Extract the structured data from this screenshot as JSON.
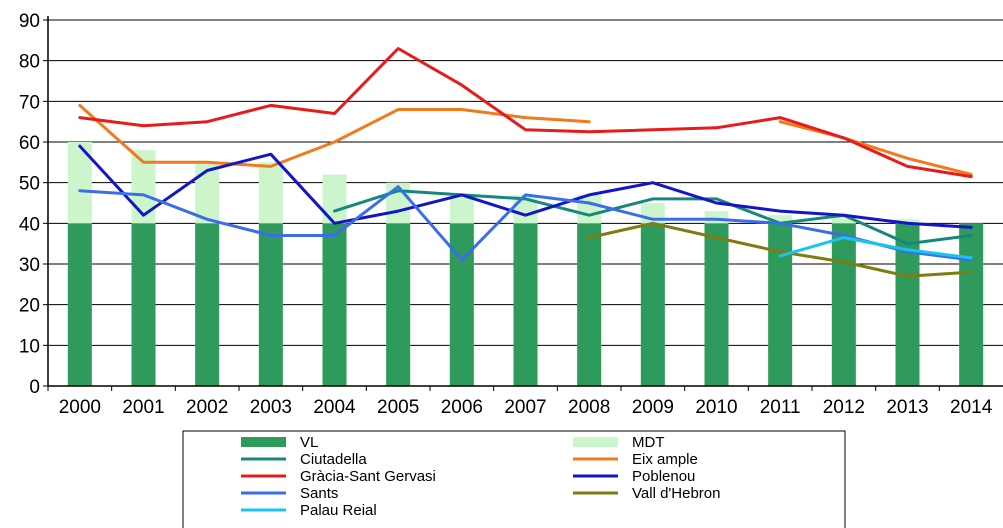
{
  "chart_data": {
    "type": "bar",
    "title": "",
    "xlabel": "",
    "ylabel": "",
    "ylim": [
      0,
      90
    ],
    "y_ticks": [
      0,
      10,
      20,
      30,
      40,
      50,
      60,
      70,
      80,
      90
    ],
    "grid": "horizontal",
    "legend_position": "bottom",
    "categories": [
      "2000",
      "2001",
      "2002",
      "2003",
      "2004",
      "2005",
      "2006",
      "2007",
      "2008",
      "2009",
      "2010",
      "2011",
      "2012",
      "2013",
      "2014"
    ],
    "bars": [
      {
        "name": "VL",
        "color": "#2e9a5c",
        "values": [
          40,
          40,
          40,
          40,
          40,
          40,
          40,
          40,
          40,
          40,
          40,
          40,
          40,
          40,
          40
        ]
      },
      {
        "name": "MDT",
        "color": "#ccf5cc",
        "values": [
          60,
          58,
          55,
          55,
          52,
          50,
          47,
          47,
          47,
          45,
          43,
          42,
          42,
          41,
          40
        ]
      }
    ],
    "series": [
      {
        "name": "Ciutadella",
        "color": "#17877e",
        "values": [
          null,
          null,
          null,
          null,
          43,
          48,
          47,
          46,
          42,
          46,
          46,
          40,
          42,
          35,
          37
        ]
      },
      {
        "name": "Eixample",
        "color": "#f07b1d",
        "values": [
          69,
          55,
          55,
          54,
          60,
          68,
          68,
          66,
          65,
          null,
          null,
          65,
          61,
          56,
          52
        ]
      },
      {
        "name": "Gràcia-Sant Gervasi",
        "color": "#e81b1b",
        "values": [
          66,
          64,
          65,
          69,
          67,
          83,
          74,
          63,
          62.5,
          63,
          63.5,
          66,
          61,
          54,
          51.5
        ]
      },
      {
        "name": "Poblenou",
        "color": "#1515c8",
        "values": [
          59,
          42,
          53,
          57,
          40,
          43,
          47,
          42,
          47,
          50,
          45,
          43,
          42,
          40,
          39
        ]
      },
      {
        "name": "Sants",
        "color": "#3a6ee8",
        "values": [
          48,
          47,
          41,
          37,
          37,
          49,
          31,
          47,
          45,
          41,
          41,
          40,
          37,
          33,
          31
        ]
      },
      {
        "name": "Vall d'Hebron",
        "color": "#7d7d13",
        "values": [
          null,
          null,
          null,
          null,
          null,
          null,
          null,
          null,
          36.5,
          40,
          36.5,
          33,
          30.5,
          27,
          28
        ]
      },
      {
        "name": "Palau Reial",
        "color": "#19c4ec",
        "values": [
          null,
          null,
          null,
          null,
          null,
          null,
          null,
          null,
          null,
          null,
          null,
          32,
          36.5,
          33.5,
          31.5
        ]
      }
    ],
    "legend": [
      {
        "label": "VL",
        "color": "#2e9a5c",
        "kind": "bar"
      },
      {
        "label": "MDT",
        "color": "#ccf5cc",
        "kind": "bar"
      },
      {
        "label": "Ciutadella",
        "color": "#17877e",
        "kind": "line"
      },
      {
        "label": "Eix ample",
        "color": "#f07b1d",
        "kind": "line"
      },
      {
        "label": "Gràcia-Sant Gervasi",
        "color": "#e81b1b",
        "kind": "line"
      },
      {
        "label": "Poblenou",
        "color": "#1515c8",
        "kind": "line"
      },
      {
        "label": "Sants",
        "color": "#3a6ee8",
        "kind": "line"
      },
      {
        "label": "Vall d'Hebron",
        "color": "#7d7d13",
        "kind": "line"
      },
      {
        "label": "Palau Reial",
        "color": "#19c4ec",
        "kind": "line"
      }
    ]
  }
}
